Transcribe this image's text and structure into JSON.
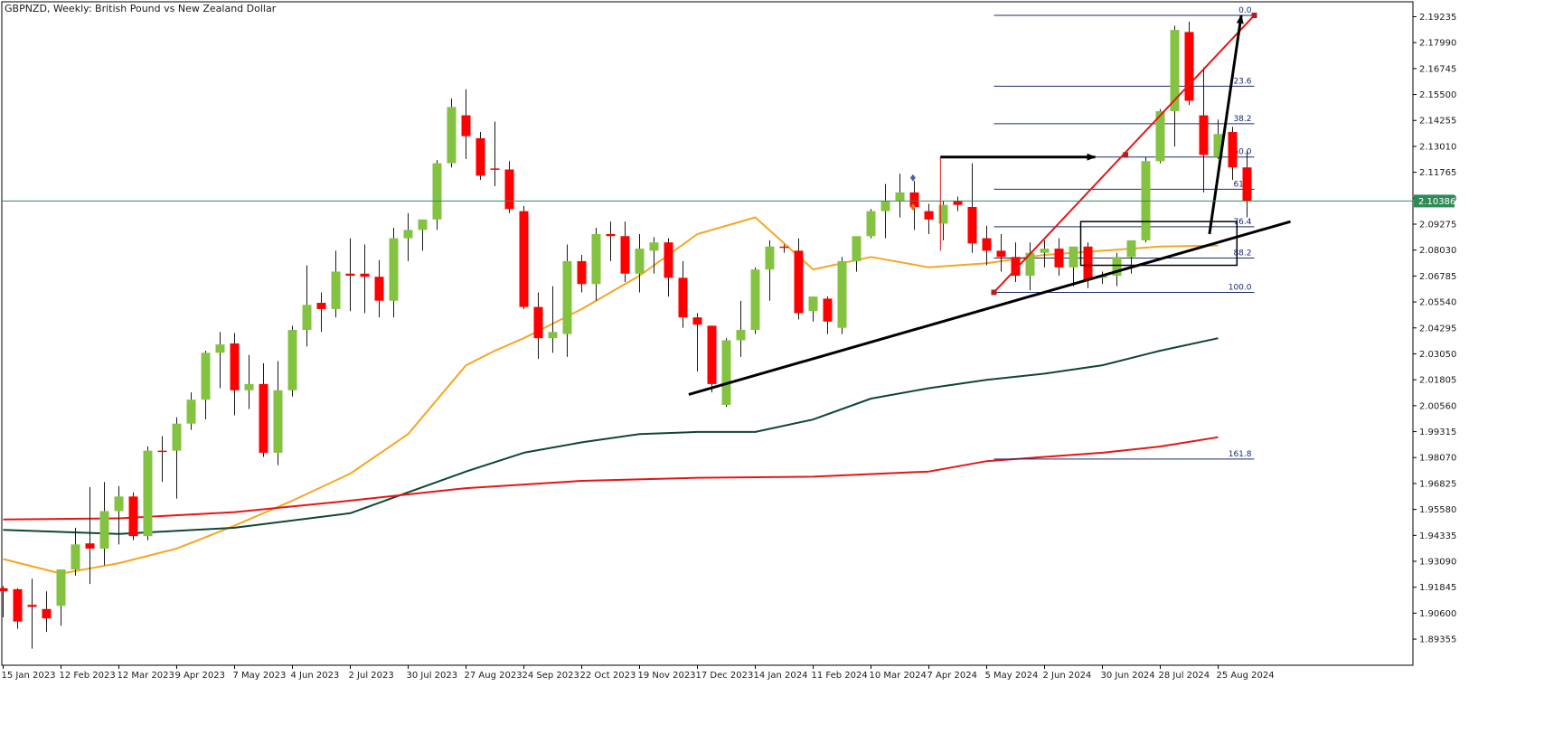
{
  "chart_data": {
    "type": "candlestick",
    "title": "GBPNZD, Weekly:  British Pound vs New Zealand Dollar",
    "symbol": "GBPNZD",
    "timeframe": "Weekly",
    "description": "British Pound vs New Zealand Dollar",
    "ylim": [
      1.881,
      2.1995
    ],
    "y_ticks": [
      "2.19235",
      "2.17990",
      "2.16745",
      "2.15500",
      "2.14255",
      "2.13010",
      "2.11765",
      "2.10520",
      "2.09275",
      "2.08030",
      "2.06785",
      "2.05540",
      "2.04295",
      "2.03050",
      "2.01805",
      "2.00560",
      "1.99315",
      "1.98070",
      "1.96825",
      "1.95580",
      "1.94335",
      "1.93090",
      "1.91845",
      "1.90600",
      "1.89355"
    ],
    "x_ticks": [
      {
        "label": "15 Jan 2023",
        "index": 0
      },
      {
        "label": "12 Feb 2023",
        "index": 4
      },
      {
        "label": "12 Mar 2023",
        "index": 8
      },
      {
        "label": "9 Apr 2023",
        "index": 12
      },
      {
        "label": "7 May 2023",
        "index": 16
      },
      {
        "label": "4 Jun 2023",
        "index": 20
      },
      {
        "label": "2 Jul 2023",
        "index": 24
      },
      {
        "label": "30 Jul 2023",
        "index": 28
      },
      {
        "label": "27 Aug 2023",
        "index": 32
      },
      {
        "label": "24 Sep 2023",
        "index": 36
      },
      {
        "label": "22 Oct 2023",
        "index": 40
      },
      {
        "label": "19 Nov 2023",
        "index": 44
      },
      {
        "label": "17 Dec 2023",
        "index": 48
      },
      {
        "label": "14 Jan 2024",
        "index": 52
      },
      {
        "label": "11 Feb 2024",
        "index": 56
      },
      {
        "label": "10 Mar 2024",
        "index": 60
      },
      {
        "label": "7 Apr 2024",
        "index": 64
      },
      {
        "label": "5 May 2024",
        "index": 68
      },
      {
        "label": "2 Jun 2024",
        "index": 72
      },
      {
        "label": "30 Jun 2024",
        "index": 76
      },
      {
        "label": "28 Jul 2024",
        "index": 80
      },
      {
        "label": "25 Aug 2024",
        "index": 84
      }
    ],
    "current_price": "2.10386",
    "current_price_value": 2.10386,
    "candles": [
      {
        "o": 1.918,
        "h": 1.919,
        "l": 1.904,
        "c": 1.9165
      },
      {
        "o": 1.9175,
        "h": 1.918,
        "l": 1.8985,
        "c": 1.902
      },
      {
        "o": 1.91,
        "h": 1.9225,
        "l": 1.889,
        "c": 1.909
      },
      {
        "o": 1.908,
        "h": 1.9165,
        "l": 1.897,
        "c": 1.9035
      },
      {
        "o": 1.9095,
        "h": 1.925,
        "l": 1.9,
        "c": 1.927
      },
      {
        "o": 1.927,
        "h": 1.947,
        "l": 1.924,
        "c": 1.939
      },
      {
        "o": 1.9395,
        "h": 1.9665,
        "l": 1.92,
        "c": 1.937
      },
      {
        "o": 1.937,
        "h": 1.969,
        "l": 1.929,
        "c": 1.955
      },
      {
        "o": 1.955,
        "h": 1.967,
        "l": 1.939,
        "c": 1.962
      },
      {
        "o": 1.962,
        "h": 1.964,
        "l": 1.941,
        "c": 1.943
      },
      {
        "o": 1.943,
        "h": 1.986,
        "l": 1.941,
        "c": 1.984
      },
      {
        "o": 1.984,
        "h": 1.991,
        "l": 1.969,
        "c": 1.9835
      },
      {
        "o": 1.984,
        "h": 2.0,
        "l": 1.961,
        "c": 1.997
      },
      {
        "o": 1.997,
        "h": 2.012,
        "l": 1.994,
        "c": 2.0085
      },
      {
        "o": 2.0085,
        "h": 2.032,
        "l": 1.999,
        "c": 2.031
      },
      {
        "o": 2.031,
        "h": 2.041,
        "l": 2.014,
        "c": 2.035
      },
      {
        "o": 2.0355,
        "h": 2.0405,
        "l": 2.001,
        "c": 2.013
      },
      {
        "o": 2.013,
        "h": 2.03,
        "l": 2.004,
        "c": 2.016
      },
      {
        "o": 2.016,
        "h": 2.026,
        "l": 1.981,
        "c": 1.983
      },
      {
        "o": 1.983,
        "h": 2.027,
        "l": 1.977,
        "c": 2.013
      },
      {
        "o": 2.013,
        "h": 2.044,
        "l": 2.01,
        "c": 2.042
      },
      {
        "o": 2.042,
        "h": 2.073,
        "l": 2.034,
        "c": 2.054
      },
      {
        "o": 2.055,
        "h": 2.06,
        "l": 2.041,
        "c": 2.052
      },
      {
        "o": 2.052,
        "h": 2.08,
        "l": 2.048,
        "c": 2.07
      },
      {
        "o": 2.069,
        "h": 2.086,
        "l": 2.051,
        "c": 2.068
      },
      {
        "o": 2.069,
        "h": 2.083,
        "l": 2.05,
        "c": 2.0675
      },
      {
        "o": 2.0675,
        "h": 2.0755,
        "l": 2.048,
        "c": 2.056
      },
      {
        "o": 2.056,
        "h": 2.091,
        "l": 2.048,
        "c": 2.086
      },
      {
        "o": 2.086,
        "h": 2.098,
        "l": 2.075,
        "c": 2.09
      },
      {
        "o": 2.09,
        "h": 2.0945,
        "l": 2.08,
        "c": 2.095
      },
      {
        "o": 2.095,
        "h": 2.1235,
        "l": 2.09,
        "c": 2.122
      },
      {
        "o": 2.122,
        "h": 2.153,
        "l": 2.12,
        "c": 2.149
      },
      {
        "o": 2.145,
        "h": 2.1575,
        "l": 2.124,
        "c": 2.135
      },
      {
        "o": 2.134,
        "h": 2.137,
        "l": 2.114,
        "c": 2.116
      },
      {
        "o": 2.1195,
        "h": 2.142,
        "l": 2.111,
        "c": 2.119
      },
      {
        "o": 2.119,
        "h": 2.123,
        "l": 2.098,
        "c": 2.1
      },
      {
        "o": 2.099,
        "h": 2.1015,
        "l": 2.052,
        "c": 2.053
      },
      {
        "o": 2.053,
        "h": 2.06,
        "l": 2.028,
        "c": 2.038
      },
      {
        "o": 2.038,
        "h": 2.063,
        "l": 2.031,
        "c": 2.041
      },
      {
        "o": 2.04,
        "h": 2.083,
        "l": 2.029,
        "c": 2.075
      },
      {
        "o": 2.075,
        "h": 2.078,
        "l": 2.06,
        "c": 2.064
      },
      {
        "o": 2.064,
        "h": 2.091,
        "l": 2.056,
        "c": 2.088
      },
      {
        "o": 2.088,
        "h": 2.094,
        "l": 2.075,
        "c": 2.087
      },
      {
        "o": 2.087,
        "h": 2.094,
        "l": 2.065,
        "c": 2.069
      },
      {
        "o": 2.069,
        "h": 2.088,
        "l": 2.06,
        "c": 2.081
      },
      {
        "o": 2.08,
        "h": 2.0865,
        "l": 2.069,
        "c": 2.084
      },
      {
        "o": 2.084,
        "h": 2.086,
        "l": 2.058,
        "c": 2.067
      },
      {
        "o": 2.067,
        "h": 2.075,
        "l": 2.043,
        "c": 2.048
      },
      {
        "o": 2.048,
        "h": 2.05,
        "l": 2.022,
        "c": 2.0445
      },
      {
        "o": 2.044,
        "h": 2.044,
        "l": 2.012,
        "c": 2.016
      },
      {
        "o": 2.006,
        "h": 2.038,
        "l": 2.005,
        "c": 2.037
      },
      {
        "o": 2.037,
        "h": 2.056,
        "l": 2.029,
        "c": 2.042
      },
      {
        "o": 2.042,
        "h": 2.072,
        "l": 2.04,
        "c": 2.071
      },
      {
        "o": 2.071,
        "h": 2.085,
        "l": 2.056,
        "c": 2.082
      },
      {
        "o": 2.082,
        "h": 2.083,
        "l": 2.079,
        "c": 2.0815
      },
      {
        "o": 2.08,
        "h": 2.086,
        "l": 2.047,
        "c": 2.05
      },
      {
        "o": 2.051,
        "h": 2.058,
        "l": 2.046,
        "c": 2.058
      },
      {
        "o": 2.057,
        "h": 2.058,
        "l": 2.04,
        "c": 2.046
      },
      {
        "o": 2.043,
        "h": 2.077,
        "l": 2.04,
        "c": 2.075
      },
      {
        "o": 2.075,
        "h": 2.086,
        "l": 2.07,
        "c": 2.087
      },
      {
        "o": 2.087,
        "h": 2.1,
        "l": 2.086,
        "c": 2.099
      },
      {
        "o": 2.099,
        "h": 2.112,
        "l": 2.086,
        "c": 2.104
      },
      {
        "o": 2.104,
        "h": 2.117,
        "l": 2.096,
        "c": 2.108
      },
      {
        "o": 2.108,
        "h": 2.1135,
        "l": 2.09,
        "c": 2.101
      },
      {
        "o": 2.099,
        "h": 2.1025,
        "l": 2.088,
        "c": 2.095
      },
      {
        "o": 2.093,
        "h": 2.104,
        "l": 2.085,
        "c": 2.102
      },
      {
        "o": 2.104,
        "h": 2.106,
        "l": 2.099,
        "c": 2.102
      },
      {
        "o": 2.101,
        "h": 2.122,
        "l": 2.079,
        "c": 2.0835
      },
      {
        "o": 2.086,
        "h": 2.092,
        "l": 2.073,
        "c": 2.08
      },
      {
        "o": 2.08,
        "h": 2.088,
        "l": 2.07,
        "c": 2.077
      },
      {
        "o": 2.077,
        "h": 2.084,
        "l": 2.065,
        "c": 2.068
      },
      {
        "o": 2.068,
        "h": 2.084,
        "l": 2.061,
        "c": 2.079
      },
      {
        "o": 2.079,
        "h": 2.085,
        "l": 2.072,
        "c": 2.081
      },
      {
        "o": 2.081,
        "h": 2.086,
        "l": 2.068,
        "c": 2.072
      },
      {
        "o": 2.072,
        "h": 2.081,
        "l": 2.063,
        "c": 2.082
      },
      {
        "o": 2.082,
        "h": 2.084,
        "l": 2.062,
        "c": 2.066
      },
      {
        "o": 2.067,
        "h": 2.07,
        "l": 2.064,
        "c": 2.068
      },
      {
        "o": 2.068,
        "h": 2.079,
        "l": 2.063,
        "c": 2.077
      },
      {
        "o": 2.077,
        "h": 2.084,
        "l": 2.069,
        "c": 2.085
      },
      {
        "o": 2.085,
        "h": 2.125,
        "l": 2.084,
        "c": 2.123
      },
      {
        "o": 2.123,
        "h": 2.148,
        "l": 2.122,
        "c": 2.147
      },
      {
        "o": 2.147,
        "h": 2.188,
        "l": 2.13,
        "c": 2.186
      },
      {
        "o": 2.185,
        "h": 2.19,
        "l": 2.15,
        "c": 2.152
      },
      {
        "o": 2.145,
        "h": 2.168,
        "l": 2.108,
        "c": 2.126
      },
      {
        "o": 2.125,
        "h": 2.143,
        "l": 2.124,
        "c": 2.136
      },
      {
        "o": 2.137,
        "h": 2.1395,
        "l": 2.114,
        "c": 2.12
      },
      {
        "o": 2.12,
        "h": 2.128,
        "l": 2.096,
        "c": 2.104
      }
    ],
    "moving_averages": [
      {
        "color": "#f5a623",
        "values": [
          [
            0,
            1.932
          ],
          [
            4,
            1.925
          ],
          [
            8,
            1.93
          ],
          [
            12,
            1.937
          ],
          [
            16,
            1.948
          ],
          [
            20,
            1.96
          ],
          [
            24,
            1.973
          ],
          [
            28,
            1.992
          ],
          [
            32,
            2.025
          ],
          [
            34,
            2.032
          ],
          [
            36,
            2.038
          ],
          [
            40,
            2.052
          ],
          [
            44,
            2.068
          ],
          [
            48,
            2.088
          ],
          [
            52,
            2.096
          ],
          [
            56,
            2.071
          ],
          [
            60,
            2.077
          ],
          [
            64,
            2.072
          ],
          [
            68,
            2.074
          ],
          [
            72,
            2.078
          ],
          [
            76,
            2.08
          ],
          [
            80,
            2.082
          ],
          [
            84,
            2.0825
          ]
        ]
      },
      {
        "color": "#0f4636",
        "values": [
          [
            0,
            1.946
          ],
          [
            8,
            1.944
          ],
          [
            16,
            1.947
          ],
          [
            24,
            1.954
          ],
          [
            28,
            1.964
          ],
          [
            32,
            1.974
          ],
          [
            36,
            1.983
          ],
          [
            40,
            1.988
          ],
          [
            44,
            1.992
          ],
          [
            48,
            1.993
          ],
          [
            52,
            1.993
          ],
          [
            56,
            1.999
          ],
          [
            60,
            2.009
          ],
          [
            64,
            2.014
          ],
          [
            68,
            2.018
          ],
          [
            72,
            2.021
          ],
          [
            76,
            2.025
          ],
          [
            80,
            2.032
          ],
          [
            84,
            2.038
          ]
        ]
      },
      {
        "color": "#e81414",
        "values": [
          [
            0,
            1.951
          ],
          [
            8,
            1.9515
          ],
          [
            16,
            1.9545
          ],
          [
            24,
            1.96
          ],
          [
            32,
            1.966
          ],
          [
            40,
            1.9695
          ],
          [
            48,
            1.971
          ],
          [
            56,
            1.9715
          ],
          [
            64,
            1.974
          ],
          [
            68,
            1.979
          ],
          [
            72,
            1.981
          ],
          [
            76,
            1.983
          ],
          [
            80,
            1.986
          ],
          [
            84,
            1.9905
          ]
        ]
      }
    ],
    "fibonacci": {
      "x_start": 68.5,
      "x_end": 86.5,
      "color": "#1a2a6a",
      "levels": [
        {
          "label": "0.0",
          "value": 2.193
        },
        {
          "label": "23.6",
          "value": 2.159
        },
        {
          "label": "38.2",
          "value": 2.141
        },
        {
          "label": "50.0",
          "value": 2.125
        },
        {
          "label": "61.8",
          "value": 2.1095
        },
        {
          "label": "76.4",
          "value": 2.0915
        },
        {
          "label": "88.2",
          "value": 2.0765
        },
        {
          "label": "100.0",
          "value": 2.06
        },
        {
          "label": "161.8",
          "value": 1.98
        }
      ]
    },
    "annotations": {
      "trendline": {
        "color": "#000000",
        "points": [
          [
            47.4,
            2.011
          ],
          [
            89.0,
            2.094
          ]
        ]
      },
      "red_line": {
        "color": "#e81414",
        "points": [
          [
            68.5,
            2.06
          ],
          [
            86.5,
            2.193
          ]
        ]
      },
      "horizontal_arrow": {
        "color": "#000000",
        "points": [
          [
            64.8,
            2.125
          ],
          [
            75.5,
            2.125
          ]
        ]
      },
      "vertical_left_segment": {
        "color": "#e81414",
        "points": [
          [
            64.8,
            2.125
          ],
          [
            64.8,
            2.08
          ]
        ]
      },
      "up_arrow": {
        "color": "#000000",
        "points": [
          [
            83.4,
            2.088
          ],
          [
            85.6,
            2.193
          ]
        ]
      },
      "box": {
        "color": "#000000",
        "corners": [
          [
            74.5,
            2.094
          ],
          [
            85.3,
            2.073
          ]
        ]
      },
      "markers": [
        {
          "shape": "diamond",
          "color": "#4a63b0",
          "point": [
            62.9,
            2.115
          ]
        },
        {
          "shape": "diamond",
          "color": "#e07020",
          "point": [
            62.9,
            2.101
          ]
        }
      ]
    },
    "colors": {
      "bull": "#84c341",
      "bear": "#ff0000",
      "wick": "#1a1a1a",
      "current_price_line": "#2e8b57",
      "current_price_tag_bg": "#2e8b57",
      "axis": "#000000"
    },
    "grid": false,
    "legend": "none"
  }
}
